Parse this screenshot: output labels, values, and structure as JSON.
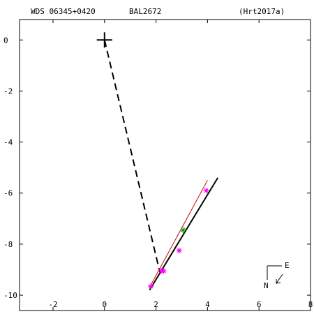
{
  "header": {
    "wds_id": "WDS 06345+0420",
    "discoverer": "BAL2672",
    "reference": "(Hrt2017a)"
  },
  "compass": {
    "north_label": "N",
    "east_label": "E"
  },
  "chart_data": {
    "type": "scatter",
    "title": "",
    "xlabel": "",
    "ylabel": "",
    "xlim": [
      -3.3,
      8.0
    ],
    "ylim": [
      -10.6,
      0.8
    ],
    "x_ticks": [
      -2,
      0,
      2,
      4,
      6,
      8
    ],
    "x_tick_labels": [
      "-2",
      "0",
      "2",
      "4",
      "6",
      "8"
    ],
    "y_ticks": [
      0,
      -2,
      -4,
      -6,
      -8,
      -10
    ],
    "y_tick_labels": [
      "0",
      "-2",
      "-4",
      "-6",
      "-8",
      "-10"
    ],
    "primary_star": {
      "x": 0,
      "y": 0
    },
    "dashed_connector": {
      "from": [
        0,
        0
      ],
      "to": [
        2.15,
        -9.1
      ]
    },
    "orbit_lines": [
      {
        "color": "#000000",
        "points": [
          [
            1.75,
            -9.8
          ],
          [
            4.4,
            -5.4
          ]
        ]
      },
      {
        "color": "#cc0000",
        "points": [
          [
            1.8,
            -9.6
          ],
          [
            4.0,
            -5.5
          ]
        ]
      }
    ],
    "observations": [
      {
        "x": 1.8,
        "y": -9.65,
        "color": "#ff00ff"
      },
      {
        "x": 2.2,
        "y": -9.05,
        "color": "#ff00ff"
      },
      {
        "x": 2.3,
        "y": -9.05,
        "color": "#ff00ff"
      },
      {
        "x": 2.9,
        "y": -8.25,
        "color": "#ff00ff"
      },
      {
        "x": 3.05,
        "y": -7.45,
        "color": "#00aa00"
      },
      {
        "x": 3.95,
        "y": -5.9,
        "color": "#ff00ff"
      }
    ]
  }
}
